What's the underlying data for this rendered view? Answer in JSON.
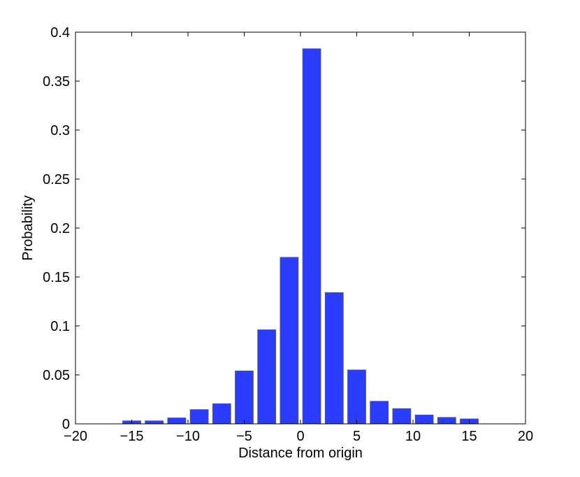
{
  "chart_data": {
    "type": "bar",
    "xlabel": "Distance from origin",
    "ylabel": "Probability",
    "xlim": [
      -20,
      20
    ],
    "ylim": [
      0,
      0.4
    ],
    "x_ticks": [
      -20,
      -15,
      -10,
      -5,
      0,
      5,
      10,
      15,
      20
    ],
    "x_tick_labels": [
      "−20",
      "−15",
      "−10",
      "−5",
      "0",
      "5",
      "10",
      "15",
      "20"
    ],
    "y_ticks": [
      0,
      0.05,
      0.1,
      0.15,
      0.2,
      0.25,
      0.3,
      0.35,
      0.4
    ],
    "y_tick_labels": [
      "0",
      "0.05",
      "0.1",
      "0.15",
      "0.2",
      "0.25",
      "0.3",
      "0.35",
      "0.4"
    ],
    "x": [
      -15,
      -13,
      -11,
      -9,
      -7,
      -5,
      -3,
      -1,
      1,
      3,
      5,
      7,
      9,
      11,
      13,
      15
    ],
    "values": [
      0.003,
      0.003,
      0.006,
      0.0145,
      0.0205,
      0.054,
      0.096,
      0.17,
      0.383,
      0.134,
      0.055,
      0.023,
      0.0155,
      0.009,
      0.0065,
      0.005
    ],
    "bar_color": "#2a3dff",
    "grid": false
  }
}
